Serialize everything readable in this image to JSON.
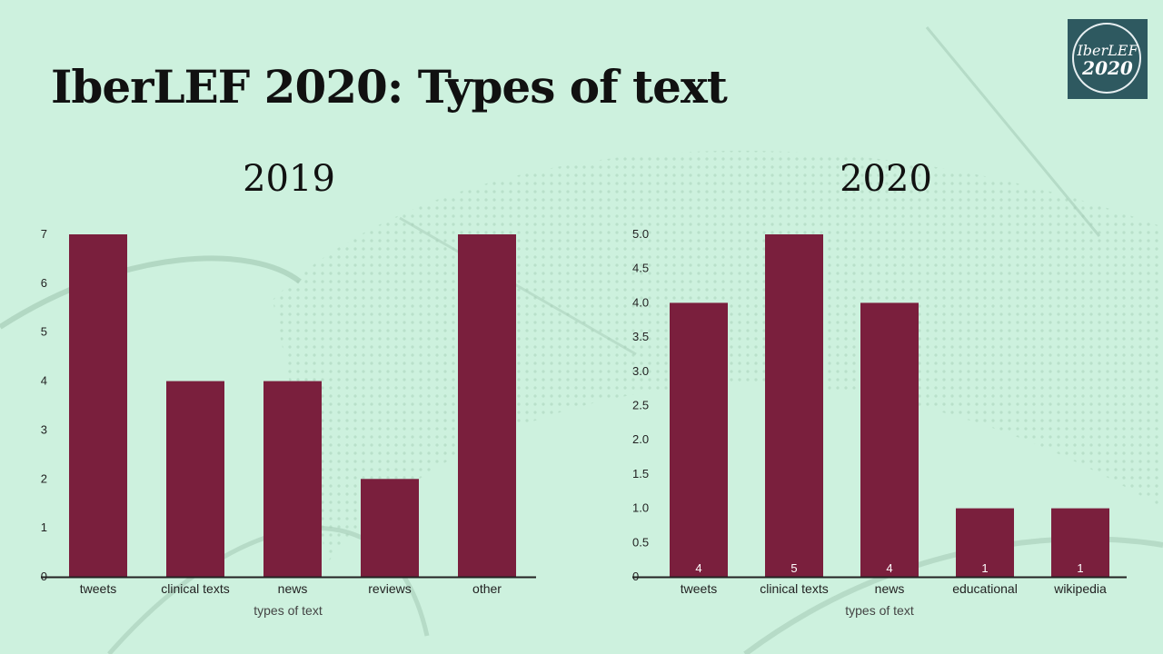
{
  "slide": {
    "title": "IberLEF 2020: Types of text"
  },
  "logo": {
    "line1": "IberLEF",
    "line2": "2020"
  },
  "colors": {
    "background": "#cdf1de",
    "bar": "#7a1f3d",
    "axis": "#222222"
  },
  "chart_data": [
    {
      "type": "bar",
      "title": "2019",
      "xlabel": "types of text",
      "ylabel": "",
      "categories": [
        "tweets",
        "clinical texts",
        "news",
        "reviews",
        "other"
      ],
      "values": [
        7,
        4,
        4,
        2,
        7
      ],
      "ylim": [
        0,
        7
      ],
      "yticks": [
        "0",
        "1",
        "2",
        "3",
        "4",
        "5",
        "6",
        "7"
      ],
      "data_labels": [],
      "grid": false
    },
    {
      "type": "bar",
      "title": "2020",
      "xlabel": "types of text",
      "ylabel": "",
      "categories": [
        "tweets",
        "clinical texts",
        "news",
        "educational",
        "wikipedia"
      ],
      "values": [
        4,
        5,
        4,
        1,
        1
      ],
      "ylim": [
        0,
        5
      ],
      "yticks": [
        "0",
        "0.5",
        "1.0",
        "1.5",
        "2.0",
        "2.5",
        "3.0",
        "3.5",
        "4.0",
        "4.5",
        "5.0"
      ],
      "data_labels": [
        "4",
        "5",
        "4",
        "1",
        "1"
      ],
      "grid": false
    }
  ]
}
